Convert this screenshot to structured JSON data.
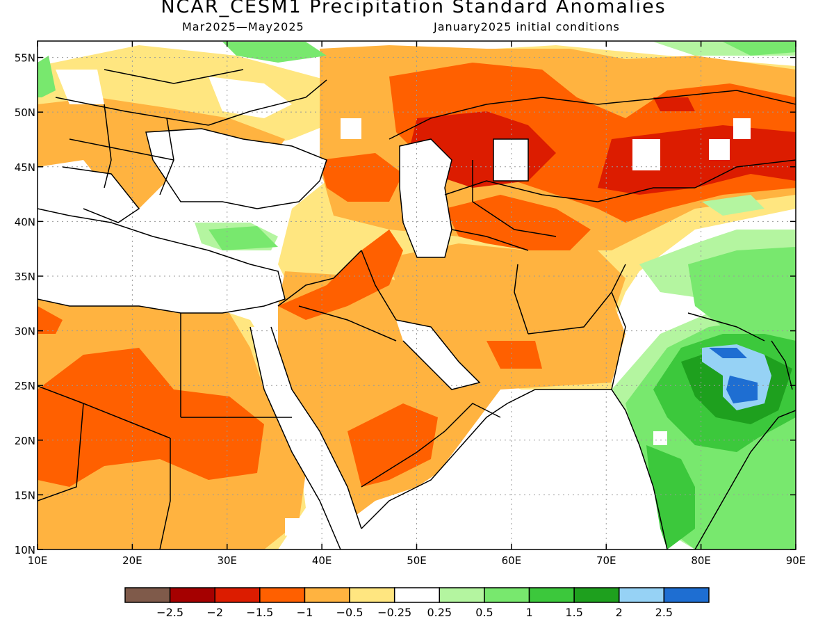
{
  "title": "NCAR_CESM1 Precipitation Standard Anomalies",
  "subtitle_period": "Mar2025—May2025",
  "subtitle_init": "January2025 initial conditions",
  "axes": {
    "lon_labels": [
      "10E",
      "20E",
      "30E",
      "40E",
      "50E",
      "60E",
      "70E",
      "80E",
      "90E"
    ],
    "lat_labels": [
      "10N",
      "15N",
      "20N",
      "25N",
      "30N",
      "35N",
      "40N",
      "45N",
      "50N",
      "55N"
    ]
  },
  "colorbar": {
    "colors": [
      "#7f5a4a",
      "#a50000",
      "#dc1c00",
      "#ff6000",
      "#ffb340",
      "#ffe680",
      "#ffffff",
      "#b4f5a0",
      "#78e86e",
      "#3cc83c",
      "#1ea01e",
      "#96d2f5",
      "#1e6ed2"
    ],
    "labels": [
      "−2.5",
      "−2",
      "−1.5",
      "−1",
      "−0.5",
      "−0.25",
      "0.25",
      "0.5",
      "1",
      "1.5",
      "2",
      "2.5"
    ]
  },
  "colors": {
    "dry_light": "#ffe680",
    "dry_moderate": "#ffb340",
    "dry_strong": "#ff6000",
    "dry_very_strong": "#dc1c00",
    "wet_light": "#b4f5a0",
    "wet_moderate": "#78e86e",
    "wet_strong": "#3cc83c",
    "wet_very_strong": "#1ea01e",
    "wet_extreme": "#96d2f5",
    "wet_max": "#1e6ed2"
  }
}
